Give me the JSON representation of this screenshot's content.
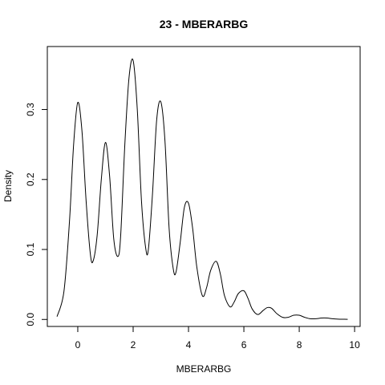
{
  "chart_data": {
    "type": "line",
    "title": "23 - MBERARBG",
    "xlabel": "MBERARBG",
    "ylabel": "Density",
    "xlim": [
      -1.1,
      10.2
    ],
    "ylim": [
      -0.01,
      0.39
    ],
    "x_ticks": [
      0,
      2,
      4,
      6,
      8,
      10
    ],
    "x_tick_labels": [
      "0",
      "2",
      "4",
      "6",
      "8",
      "10"
    ],
    "y_ticks": [
      0.0,
      0.1,
      0.2,
      0.3
    ],
    "y_tick_labels": [
      "0.0",
      "0.1",
      "0.2",
      "0.3"
    ],
    "grid": false,
    "series": [
      {
        "name": "",
        "x": [
          -0.75,
          -0.5,
          -0.3,
          -0.15,
          0,
          0.15,
          0.3,
          0.45,
          0.55,
          0.7,
          0.85,
          1.0,
          1.15,
          1.3,
          1.45,
          1.55,
          1.7,
          1.85,
          2.0,
          2.15,
          2.3,
          2.45,
          2.55,
          2.7,
          2.85,
          3.0,
          3.15,
          3.3,
          3.45,
          3.55,
          3.7,
          3.85,
          4.0,
          4.15,
          4.3,
          4.5,
          4.65,
          4.8,
          5.0,
          5.15,
          5.3,
          5.5,
          5.65,
          5.8,
          6.0,
          6.15,
          6.3,
          6.5,
          6.7,
          6.85,
          7.0,
          7.2,
          7.4,
          7.6,
          7.8,
          8.0,
          8.2,
          8.4,
          8.6,
          8.8,
          9.0,
          9.2,
          9.4,
          9.6,
          9.75
        ],
        "values": [
          0.004,
          0.04,
          0.14,
          0.25,
          0.31,
          0.27,
          0.17,
          0.095,
          0.083,
          0.12,
          0.2,
          0.253,
          0.205,
          0.115,
          0.09,
          0.12,
          0.25,
          0.345,
          0.37,
          0.3,
          0.17,
          0.103,
          0.1,
          0.18,
          0.285,
          0.311,
          0.255,
          0.13,
          0.072,
          0.068,
          0.11,
          0.16,
          0.166,
          0.13,
          0.075,
          0.034,
          0.045,
          0.07,
          0.083,
          0.065,
          0.034,
          0.018,
          0.025,
          0.037,
          0.041,
          0.03,
          0.015,
          0.007,
          0.013,
          0.017,
          0.016,
          0.008,
          0.003,
          0.003,
          0.006,
          0.006,
          0.003,
          0.001,
          0.001,
          0.002,
          0.002,
          0.001,
          0.0005,
          0.0003,
          0.0002
        ]
      }
    ]
  }
}
